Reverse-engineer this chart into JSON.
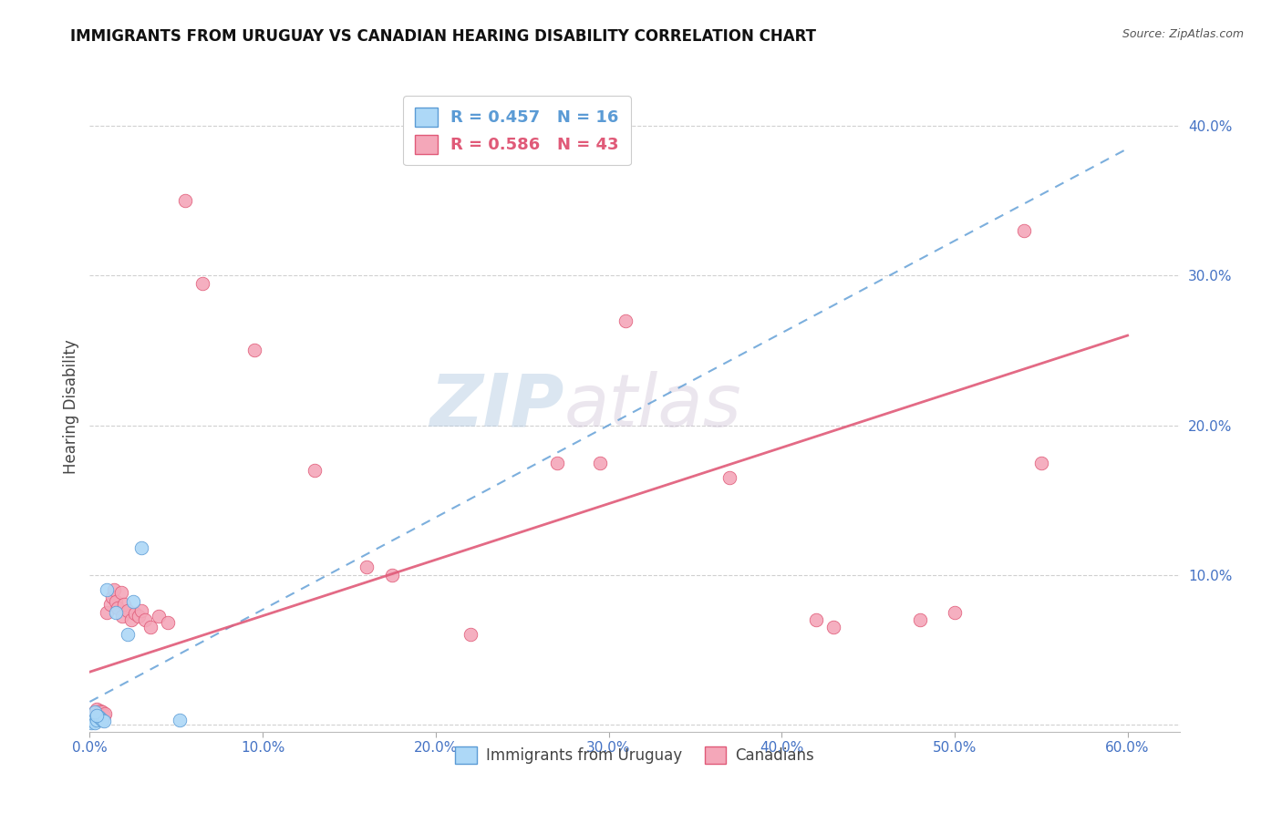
{
  "title": "IMMIGRANTS FROM URUGUAY VS CANADIAN HEARING DISABILITY CORRELATION CHART",
  "source": "Source: ZipAtlas.com",
  "ylabel": "Hearing Disability",
  "xlabel": "",
  "xlim": [
    0.0,
    0.63
  ],
  "ylim": [
    -0.005,
    0.43
  ],
  "xticks": [
    0.0,
    0.1,
    0.2,
    0.3,
    0.4,
    0.5,
    0.6
  ],
  "yticks": [
    0.0,
    0.1,
    0.2,
    0.3,
    0.4
  ],
  "ytick_labels": [
    "",
    "10.0%",
    "20.0%",
    "30.0%",
    "40.0%"
  ],
  "xtick_labels": [
    "0.0%",
    "10.0%",
    "20.0%",
    "30.0%",
    "40.0%",
    "50.0%",
    "60.0%"
  ],
  "legend_r_blue": "R = 0.457",
  "legend_n_blue": "N = 16",
  "legend_r_pink": "R = 0.586",
  "legend_n_pink": "N = 43",
  "blue_color": "#add8f7",
  "pink_color": "#f4a7b9",
  "blue_line_color": "#5b9bd5",
  "pink_line_color": "#e05a78",
  "blue_scatter": [
    [
      0.001,
      0.001
    ],
    [
      0.002,
      0.002
    ],
    [
      0.003,
      0.001
    ],
    [
      0.004,
      0.003
    ],
    [
      0.005,
      0.005
    ],
    [
      0.006,
      0.004
    ],
    [
      0.007,
      0.003
    ],
    [
      0.008,
      0.002
    ],
    [
      0.003,
      0.008
    ],
    [
      0.004,
      0.006
    ],
    [
      0.01,
      0.09
    ],
    [
      0.015,
      0.075
    ],
    [
      0.022,
      0.06
    ],
    [
      0.025,
      0.082
    ],
    [
      0.03,
      0.118
    ],
    [
      0.052,
      0.003
    ]
  ],
  "pink_scatter": [
    [
      0.002,
      0.005
    ],
    [
      0.003,
      0.008
    ],
    [
      0.004,
      0.01
    ],
    [
      0.005,
      0.007
    ],
    [
      0.006,
      0.009
    ],
    [
      0.007,
      0.008
    ],
    [
      0.008,
      0.006
    ],
    [
      0.009,
      0.007
    ],
    [
      0.01,
      0.075
    ],
    [
      0.012,
      0.08
    ],
    [
      0.013,
      0.085
    ],
    [
      0.014,
      0.09
    ],
    [
      0.015,
      0.082
    ],
    [
      0.016,
      0.078
    ],
    [
      0.018,
      0.088
    ],
    [
      0.019,
      0.072
    ],
    [
      0.02,
      0.08
    ],
    [
      0.022,
      0.076
    ],
    [
      0.024,
      0.07
    ],
    [
      0.026,
      0.074
    ],
    [
      0.028,
      0.072
    ],
    [
      0.03,
      0.076
    ],
    [
      0.032,
      0.07
    ],
    [
      0.035,
      0.065
    ],
    [
      0.04,
      0.072
    ],
    [
      0.045,
      0.068
    ],
    [
      0.055,
      0.35
    ],
    [
      0.065,
      0.295
    ],
    [
      0.095,
      0.25
    ],
    [
      0.13,
      0.17
    ],
    [
      0.16,
      0.105
    ],
    [
      0.175,
      0.1
    ],
    [
      0.22,
      0.06
    ],
    [
      0.27,
      0.175
    ],
    [
      0.295,
      0.175
    ],
    [
      0.31,
      0.27
    ],
    [
      0.37,
      0.165
    ],
    [
      0.42,
      0.07
    ],
    [
      0.43,
      0.065
    ],
    [
      0.48,
      0.07
    ],
    [
      0.5,
      0.075
    ],
    [
      0.54,
      0.33
    ],
    [
      0.55,
      0.175
    ]
  ],
  "blue_trendline_x": [
    0.0,
    0.6
  ],
  "blue_trendline_y": [
    0.015,
    0.385
  ],
  "pink_trendline_x": [
    0.0,
    0.6
  ],
  "pink_trendline_y": [
    0.035,
    0.26
  ],
  "watermark_part1": "ZIP",
  "watermark_part2": "atlas",
  "background_color": "#ffffff",
  "grid_color": "#d0d0d0",
  "title_fontsize": 12,
  "source_fontsize": 9,
  "tick_fontsize": 11,
  "tick_color": "#4472c4"
}
